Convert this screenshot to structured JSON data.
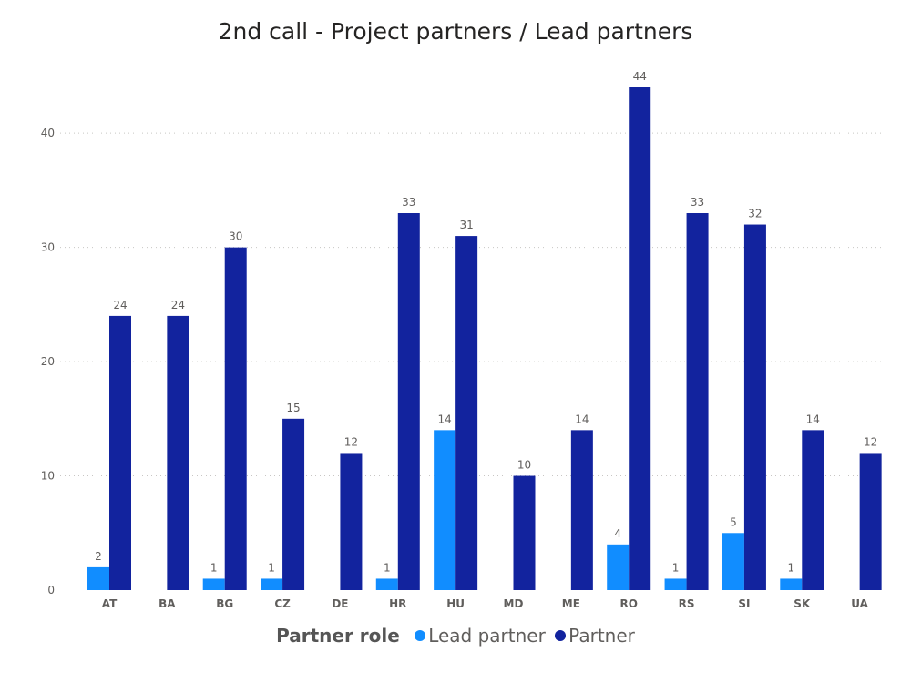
{
  "chart_data": {
    "type": "bar",
    "title": "2nd call - Project partners / Lead partners",
    "xlabel": "",
    "ylabel": "",
    "ylim": [
      0,
      45
    ],
    "yticks": [
      0,
      10,
      20,
      30,
      40
    ],
    "grid": true,
    "legend_position": "bottom",
    "legend_title": "Partner role",
    "categories": [
      "AT",
      "BA",
      "BG",
      "CZ",
      "DE",
      "HR",
      "HU",
      "MD",
      "ME",
      "RO",
      "RS",
      "SI",
      "SK",
      "UA"
    ],
    "series": [
      {
        "name": "Lead partner",
        "color": "#118DFF",
        "values": [
          2,
          null,
          1,
          1,
          null,
          1,
          14,
          null,
          null,
          4,
          1,
          5,
          1,
          null
        ]
      },
      {
        "name": "Partner",
        "color": "#12239E",
        "values": [
          24,
          24,
          30,
          15,
          12,
          33,
          31,
          10,
          14,
          44,
          33,
          32,
          14,
          12
        ]
      }
    ]
  }
}
